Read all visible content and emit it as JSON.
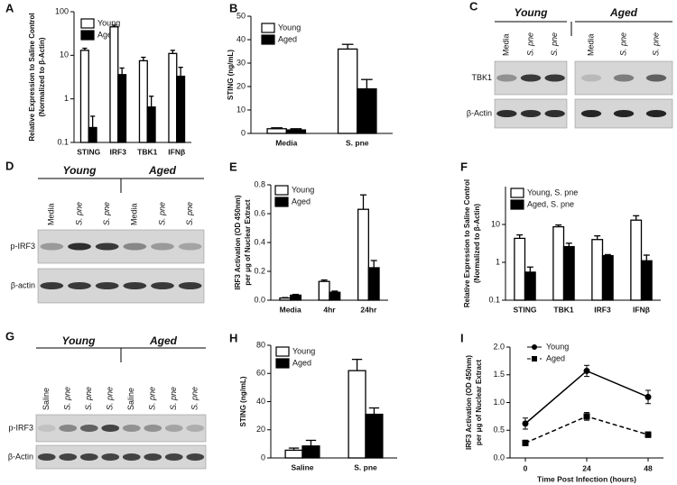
{
  "chart_data": [
    {
      "panel": "A",
      "type": "bar",
      "log_y": true,
      "ylabel": [
        "Relative Expression to Saline Control",
        "(Normalized to  β-Actin)"
      ],
      "categories": [
        "STING",
        "IRF3",
        "TBK1",
        "IFNβ"
      ],
      "series": [
        {
          "name": "Young",
          "color": "#ffffff",
          "values": [
            13,
            45,
            7.5,
            11
          ],
          "errors": [
            1.5,
            4,
            1.5,
            2
          ]
        },
        {
          "name": "Aged",
          "color": "#000000",
          "values": [
            0.22,
            3.6,
            0.65,
            3.3
          ],
          "errors": [
            0.18,
            1.5,
            0.5,
            2
          ]
        }
      ],
      "ylim": [
        0.1,
        100
      ],
      "yticks": [
        0.1,
        1,
        10,
        100
      ],
      "legend": "upper left"
    },
    {
      "panel": "B",
      "type": "bar",
      "ylabel": [
        "STING (ng/mL)"
      ],
      "categories": [
        "Media",
        "S. pne"
      ],
      "series": [
        {
          "name": "Young",
          "color": "#ffffff",
          "values": [
            2,
            36
          ],
          "errors": [
            0.4,
            2
          ]
        },
        {
          "name": "Aged",
          "color": "#000000",
          "values": [
            1.5,
            19
          ],
          "errors": [
            0.5,
            4
          ]
        }
      ],
      "ylim": [
        0,
        50
      ],
      "yticks": [
        0,
        10,
        20,
        30,
        40,
        50
      ],
      "legend": "upper left"
    },
    {
      "panel": "E",
      "type": "bar",
      "ylabel": [
        "IRF3 Activation (OD 450nm)",
        "per μg of Nuclear Extract"
      ],
      "categories": [
        "Media",
        "4hr",
        "24hr"
      ],
      "series": [
        {
          "name": "Young",
          "color": "#ffffff",
          "values": [
            0.015,
            0.13,
            0.63
          ],
          "errors": [
            0.003,
            0.01,
            0.1
          ]
        },
        {
          "name": "Aged",
          "color": "#000000",
          "values": [
            0.035,
            0.055,
            0.225
          ],
          "errors": [
            0.005,
            0.008,
            0.05
          ]
        }
      ],
      "ylim": [
        0,
        0.8
      ],
      "yticks": [
        {
          "value": 0,
          "label": "0.0"
        },
        0.2,
        0.4,
        0.6,
        0.8
      ],
      "legend": "upper left"
    },
    {
      "panel": "F",
      "type": "bar",
      "log_y": true,
      "ylabel": [
        "Relative Expression to Saline Control",
        "(Normalized to  β-Actin)"
      ],
      "categories": [
        "STING",
        "TBK1",
        "IRF3",
        "IFNβ"
      ],
      "series": [
        {
          "name": "Young, S. pne",
          "color": "#ffffff",
          "values": [
            4.3,
            8.7,
            4,
            13
          ],
          "errors": [
            1,
            1,
            1,
            4
          ]
        },
        {
          "name": "Aged, S. pne",
          "color": "#000000",
          "values": [
            0.55,
            2.6,
            1.5,
            1.1
          ],
          "errors": [
            0.2,
            0.6,
            0.1,
            0.45
          ]
        }
      ],
      "ylim": [
        0.1,
        100
      ],
      "yticks": [
        0.1,
        1,
        10
      ],
      "legend": "upper left"
    },
    {
      "panel": "H",
      "type": "bar",
      "ylabel": [
        "STING (ng/mL)"
      ],
      "categories": [
        "Saline",
        "S. pne"
      ],
      "series": [
        {
          "name": "Young",
          "color": "#ffffff",
          "values": [
            5.5,
            62
          ],
          "errors": [
            1.5,
            8
          ]
        },
        {
          "name": "Aged",
          "color": "#000000",
          "values": [
            8.5,
            31
          ],
          "errors": [
            4,
            4.5
          ]
        }
      ],
      "ylim": [
        0,
        80
      ],
      "yticks": [
        0,
        20,
        40,
        60,
        80
      ],
      "legend": "upper left"
    },
    {
      "panel": "I",
      "type": "line",
      "ylabel": [
        "IRF3 Activation (OD 450nm)",
        "per μg of Nuclear Extract"
      ],
      "xlabel": "Time Post Infection (hours)",
      "x": [
        0,
        24,
        48
      ],
      "series": [
        {
          "name": "Young",
          "color": "#000000",
          "marker": "circle",
          "line_style": "solid",
          "values": [
            0.62,
            1.57,
            1.1
          ],
          "errors": [
            0.1,
            0.1,
            0.12
          ]
        },
        {
          "name": "Aged",
          "color": "#000000",
          "marker": "square",
          "line_style": "dashed",
          "values": [
            0.27,
            0.75,
            0.42
          ],
          "errors": [
            0.05,
            0.07,
            0.05
          ]
        }
      ],
      "xlim": [
        -6,
        54
      ],
      "xticks": [
        0,
        24,
        48
      ],
      "ylim": [
        0,
        2
      ],
      "yticks": [
        {
          "value": 0,
          "label": "0.0"
        },
        0.5,
        {
          "value": 1,
          "label": "1.0"
        },
        1.5,
        {
          "value": 2,
          "label": "2.0"
        }
      ],
      "legend": "upper left"
    }
  ],
  "blots": [
    {
      "panel": "C",
      "rows": [
        "TBK1",
        "β-Actin"
      ],
      "groups": [
        {
          "label": "Young",
          "lanes": [
            "Media",
            "S. pne",
            "S. pne"
          ]
        },
        {
          "label": "Aged",
          "lanes": [
            "Media",
            "S. pne",
            "S. pne"
          ]
        }
      ]
    },
    {
      "panel": "D",
      "rows": [
        "p-IRF3",
        "β-actin"
      ],
      "groups": [
        {
          "label": "Young",
          "lanes": [
            "Media",
            "S. pne",
            "S. pne"
          ]
        },
        {
          "label": "Aged",
          "lanes": [
            "Media",
            "S. pne",
            "S. pne"
          ]
        }
      ]
    },
    {
      "panel": "G",
      "rows": [
        "p-IRF3",
        "β-Actin"
      ],
      "groups": [
        {
          "label": "Young",
          "lanes": [
            "Saline",
            "S. pne",
            "S. pne",
            "S. pne"
          ]
        },
        {
          "label": "Aged",
          "lanes": [
            "Saline",
            "S. pne",
            "S. pne",
            "S. pne"
          ]
        }
      ]
    }
  ]
}
